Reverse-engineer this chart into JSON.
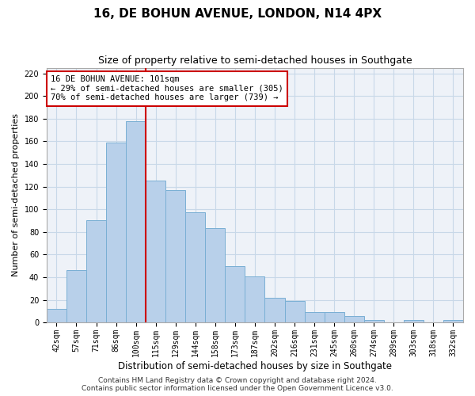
{
  "title": "16, DE BOHUN AVENUE, LONDON, N14 4PX",
  "subtitle": "Size of property relative to semi-detached houses in Southgate",
  "xlabel": "Distribution of semi-detached houses by size in Southgate",
  "ylabel": "Number of semi-detached properties",
  "categories": [
    "42sqm",
    "57sqm",
    "71sqm",
    "86sqm",
    "100sqm",
    "115sqm",
    "129sqm",
    "144sqm",
    "158sqm",
    "173sqm",
    "187sqm",
    "202sqm",
    "216sqm",
    "231sqm",
    "245sqm",
    "260sqm",
    "274sqm",
    "289sqm",
    "303sqm",
    "318sqm",
    "332sqm"
  ],
  "values": [
    12,
    46,
    90,
    159,
    178,
    125,
    117,
    97,
    83,
    50,
    41,
    22,
    19,
    9,
    9,
    6,
    2,
    0,
    2,
    0,
    2
  ],
  "bar_color": "#b8d0ea",
  "bar_edgecolor": "#7aafd4",
  "vline_index": 4,
  "property_line_label": "16 DE BOHUN AVENUE: 101sqm",
  "pct_smaller": 29,
  "count_smaller": 305,
  "pct_larger": 70,
  "count_larger": 739,
  "annotation_box_facecolor": "#ffffff",
  "annotation_box_edgecolor": "#cc0000",
  "vline_color": "#cc0000",
  "grid_color": "#c8d8e8",
  "background_color": "#eef2f8",
  "ylim": [
    0,
    225
  ],
  "yticks": [
    0,
    20,
    40,
    60,
    80,
    100,
    120,
    140,
    160,
    180,
    200,
    220
  ],
  "footer_line1": "Contains HM Land Registry data © Crown copyright and database right 2024.",
  "footer_line2": "Contains public sector information licensed under the Open Government Licence v3.0.",
  "title_fontsize": 11,
  "subtitle_fontsize": 9,
  "tick_fontsize": 7,
  "ylabel_fontsize": 8,
  "xlabel_fontsize": 8.5,
  "annotation_fontsize": 7.5,
  "footer_fontsize": 6.5
}
